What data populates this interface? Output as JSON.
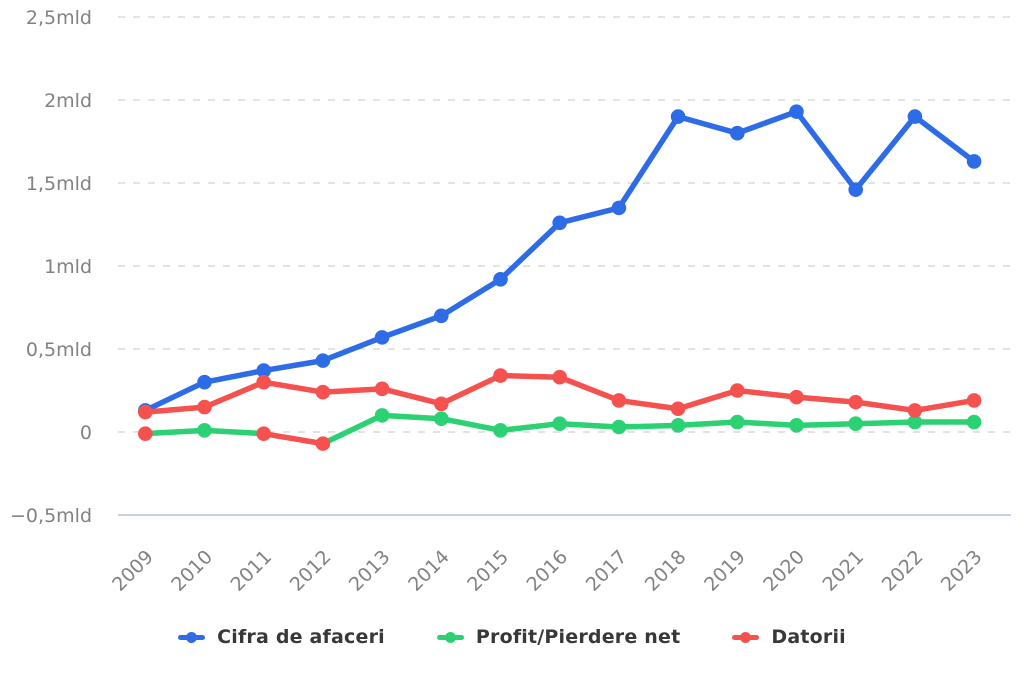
{
  "chart": {
    "background": "#ffffff",
    "axis_label_color": "#828282",
    "gridline_color": "#dadada",
    "baseline_color": "#c7cfe9",
    "y_axis_ticks": [
      {
        "label": "2,5mld",
        "value": 2.5
      },
      {
        "label": "2mld",
        "value": 2
      },
      {
        "label": "1,5mld",
        "value": 1.5
      },
      {
        "label": "1mld",
        "value": 1
      },
      {
        "label": "0,5mld",
        "value": 0.5
      },
      {
        "label": "0",
        "value": 0
      },
      {
        "label": "−0,5mld",
        "value": -0.5
      }
    ]
  },
  "chart_data": {
    "type": "line",
    "title": "",
    "xlabel": "",
    "ylabel": "",
    "unit": "mld",
    "ylim": [
      -0.5,
      2.5
    ],
    "grid": "horizontal-dashed",
    "legend_position": "bottom",
    "categories": [
      "2009",
      "2010",
      "2011",
      "2012",
      "2013",
      "2014",
      "2015",
      "2016",
      "2017",
      "2018",
      "2019",
      "2020",
      "2021",
      "2022",
      "2023"
    ],
    "draw_order": [
      1,
      0,
      2
    ],
    "series": [
      {
        "name": "Cifra de afaceri",
        "color": "#2e6be6",
        "values": [
          0.13,
          0.3,
          0.37,
          0.43,
          0.57,
          0.7,
          0.92,
          1.26,
          1.35,
          1.9,
          1.8,
          1.93,
          1.46,
          1.9,
          1.63
        ]
      },
      {
        "name": "Profit/Pierdere net",
        "color": "#2bd173",
        "negative_color": "#f5524f",
        "values": [
          -0.01,
          0.01,
          -0.01,
          -0.07,
          0.1,
          0.08,
          0.01,
          0.05,
          0.03,
          0.04,
          0.06,
          0.04,
          0.05,
          0.06,
          0.06
        ]
      },
      {
        "name": "Datorii",
        "color": "#f5524f",
        "values": [
          0.12,
          0.15,
          0.3,
          0.24,
          0.26,
          0.17,
          0.34,
          0.33,
          0.19,
          0.14,
          0.25,
          0.21,
          0.18,
          0.13,
          0.19
        ]
      }
    ]
  },
  "legend": {
    "items": [
      {
        "label": "Cifra de afaceri",
        "color": "#2e6be6"
      },
      {
        "label": "Profit/Pierdere net",
        "color": "#2bd173"
      },
      {
        "label": "Datorii",
        "color": "#f5524f"
      }
    ]
  }
}
